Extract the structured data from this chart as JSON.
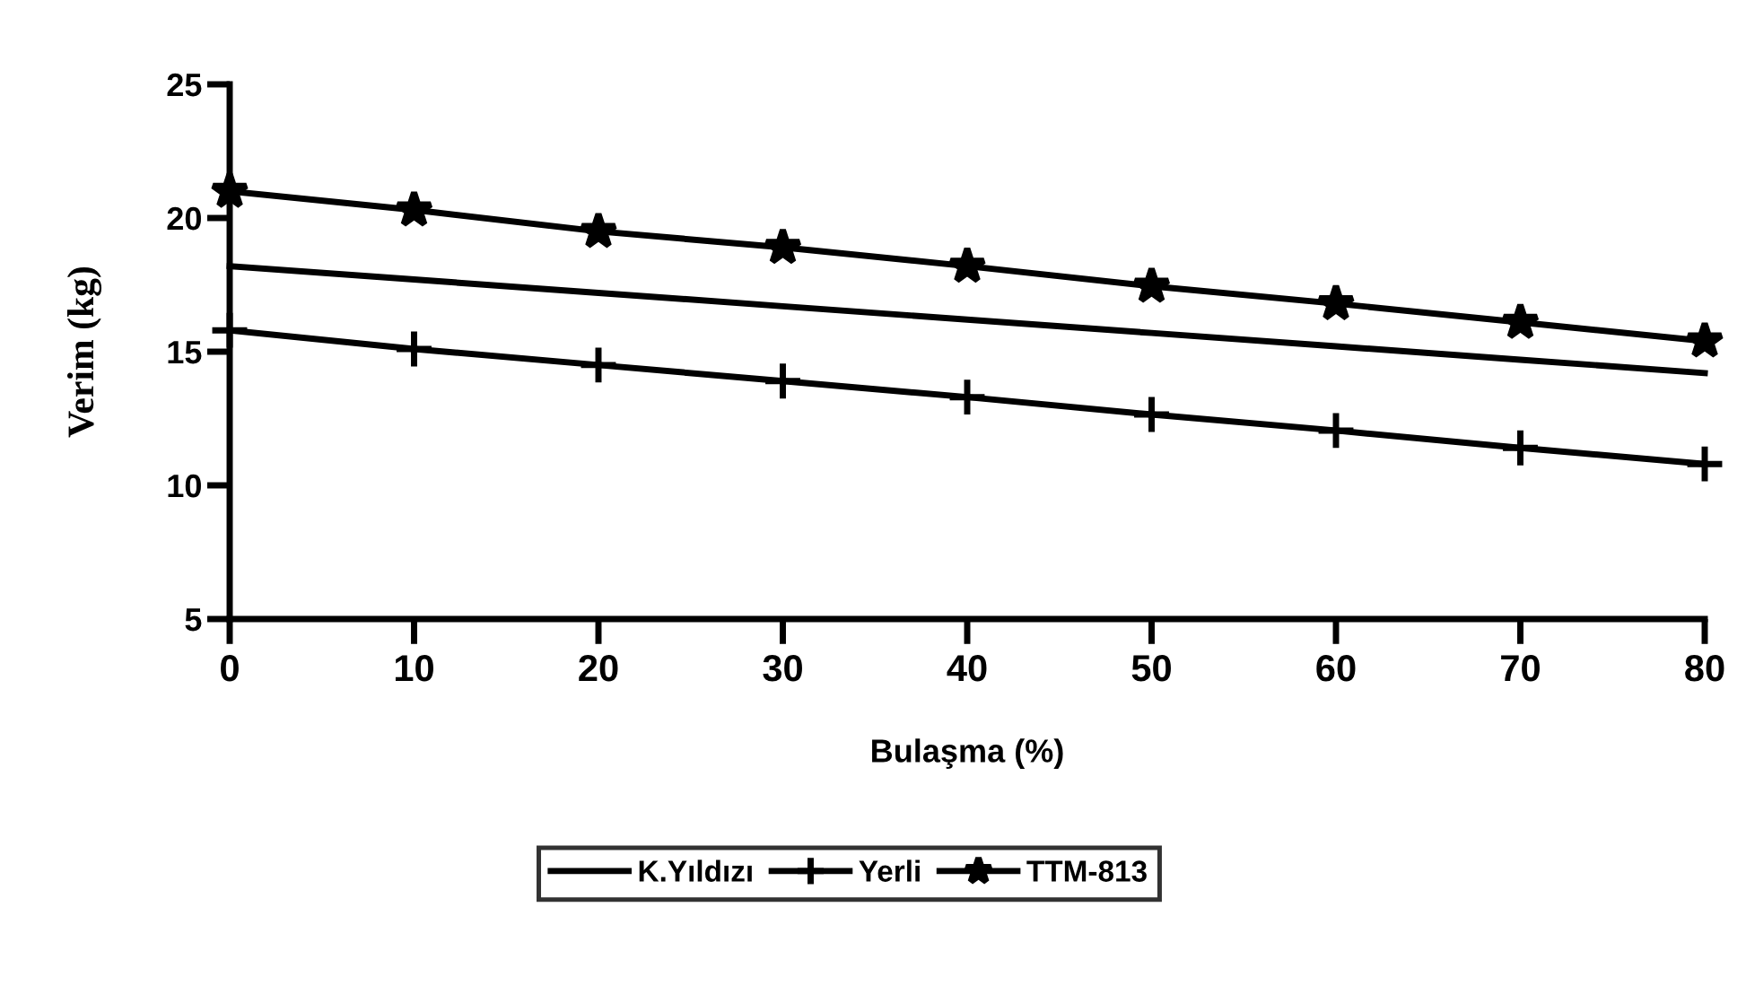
{
  "chart_data": {
    "type": "line",
    "xlabel": "Bulaşma (%)",
    "ylabel": "Verim (kg)",
    "x": [
      0,
      10,
      20,
      30,
      40,
      50,
      60,
      70,
      80
    ],
    "series": [
      {
        "name": "K.Yıldızı",
        "color": "#000000",
        "marker": "none",
        "values": [
          18.2,
          17.7,
          17.2,
          16.7,
          16.2,
          15.7,
          15.2,
          14.7,
          14.2
        ]
      },
      {
        "name": "Yerli",
        "color": "#000000",
        "marker": "cross",
        "values": [
          15.8,
          15.1,
          14.5,
          13.9,
          13.3,
          12.65,
          12.05,
          11.4,
          10.8
        ]
      },
      {
        "name": "TTM-813",
        "color": "#000000",
        "marker": "star",
        "values": [
          21.0,
          20.3,
          19.5,
          18.9,
          18.2,
          17.45,
          16.8,
          16.1,
          15.4
        ]
      }
    ],
    "xlim": [
      0,
      80
    ],
    "xticks": [
      0,
      10,
      20,
      30,
      40,
      50,
      60,
      70,
      80
    ],
    "ylim": [
      5,
      25
    ],
    "yticks": [
      5,
      10,
      15,
      20,
      25
    ],
    "grid": false,
    "legend": "bottom",
    "line_style": "solid"
  }
}
